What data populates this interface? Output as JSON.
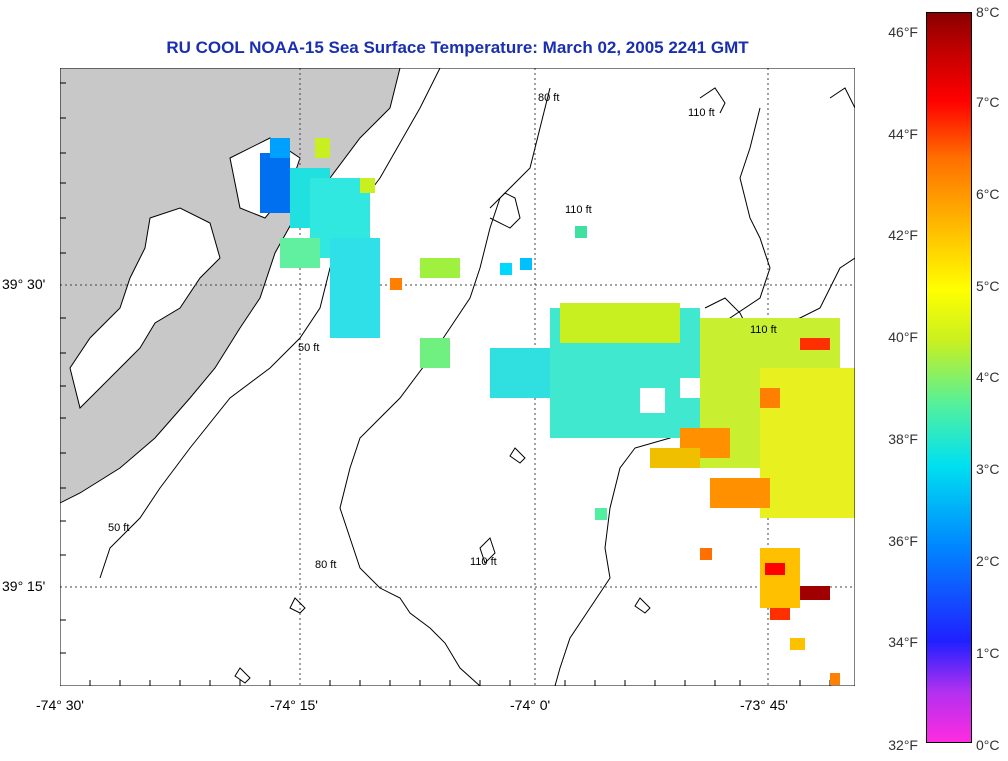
{
  "title": "RU COOL  NOAA-15  Sea Surface Temperature:  March 02, 2005 2241 GMT",
  "axes": {
    "x_ticks": [
      "-74° 30'",
      "-74° 15'",
      "-74° 0'",
      "-73° 45'"
    ],
    "y_ticks": [
      "39° 30'",
      "39° 15'"
    ]
  },
  "contour_labels": [
    "50 ft",
    "80 ft",
    "110 ft"
  ],
  "colorbar": {
    "fahrenheit": [
      "46°F",
      "44°F",
      "42°F",
      "40°F",
      "38°F",
      "36°F",
      "34°F",
      "32°F"
    ],
    "celsius": [
      "8°C",
      "7°C",
      "6°C",
      "5°C",
      "4°C",
      "3°C",
      "2°C",
      "1°C",
      "0°C"
    ]
  },
  "colors": {
    "title": "#1a2fb0",
    "land": "#c8c8c8",
    "contour": "#000000"
  }
}
